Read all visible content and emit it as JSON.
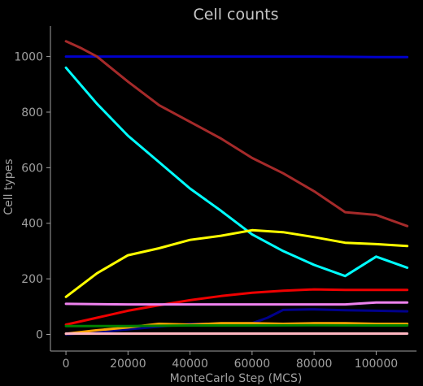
{
  "chart_data": {
    "type": "line",
    "title": "Cell counts",
    "xlabel": "MonteCarlo Step (MCS)",
    "ylabel": "Cell types",
    "xlim": [
      -5000,
      113000
    ],
    "ylim": [
      -60,
      1110
    ],
    "xticks": [
      0,
      20000,
      40000,
      60000,
      80000,
      100000
    ],
    "yticks": [
      0,
      200,
      400,
      600,
      800,
      1000
    ],
    "grid": false,
    "background": "#000000",
    "series": [
      {
        "color": "#0000cc",
        "x": [
          0,
          20000,
          40000,
          60000,
          80000,
          90000,
          100000,
          110000
        ],
        "y": [
          1000,
          1000,
          1000,
          1000,
          1000,
          999,
          998,
          998
        ]
      },
      {
        "color": "#a52a2a",
        "x": [
          0,
          5000,
          10000,
          20000,
          30000,
          40000,
          50000,
          60000,
          70000,
          80000,
          90000,
          100000,
          110000
        ],
        "y": [
          1055,
          1030,
          1000,
          910,
          825,
          765,
          705,
          635,
          580,
          515,
          440,
          430,
          390
        ]
      },
      {
        "color": "#00ffff",
        "x": [
          0,
          10000,
          20000,
          30000,
          40000,
          50000,
          60000,
          70000,
          80000,
          90000,
          100000,
          110000
        ],
        "y": [
          960,
          830,
          715,
          620,
          525,
          445,
          360,
          300,
          250,
          210,
          280,
          240
        ]
      },
      {
        "color": "#ffff00",
        "x": [
          0,
          10000,
          20000,
          30000,
          40000,
          50000,
          60000,
          70000,
          80000,
          90000,
          100000,
          110000
        ],
        "y": [
          135,
          220,
          285,
          310,
          340,
          355,
          375,
          368,
          350,
          330,
          325,
          318
        ]
      },
      {
        "color": "#ee0000",
        "x": [
          0,
          10000,
          20000,
          30000,
          40000,
          50000,
          60000,
          70000,
          80000,
          90000,
          100000,
          110000
        ],
        "y": [
          35,
          60,
          85,
          105,
          123,
          138,
          150,
          157,
          162,
          160,
          160,
          160
        ]
      },
      {
        "color": "#ee82ee",
        "x": [
          0,
          20000,
          40000,
          60000,
          80000,
          90000,
          100000,
          110000
        ],
        "y": [
          110,
          108,
          108,
          108,
          108,
          108,
          115,
          115
        ]
      },
      {
        "color": "#00008b",
        "x": [
          0,
          10000,
          20000,
          30000,
          40000,
          50000,
          60000,
          65000,
          70000,
          80000,
          90000,
          100000,
          110000
        ],
        "y": [
          0,
          8,
          18,
          28,
          38,
          38,
          40,
          60,
          88,
          90,
          87,
          85,
          83
        ]
      },
      {
        "color": "#ffa500",
        "x": [
          0,
          10000,
          20000,
          30000,
          40000,
          50000,
          60000,
          70000,
          80000,
          90000,
          100000,
          110000
        ],
        "y": [
          2,
          15,
          25,
          38,
          35,
          40,
          40,
          38,
          40,
          40,
          38,
          38
        ]
      },
      {
        "color": "#008000",
        "x": [
          0,
          20000,
          40000,
          60000,
          80000,
          100000,
          110000
        ],
        "y": [
          30,
          30,
          32,
          32,
          33,
          32,
          32
        ]
      },
      {
        "color": "#ffb6c1",
        "x": [
          0,
          20000,
          40000,
          60000,
          80000,
          100000,
          110000
        ],
        "y": [
          3,
          3,
          3,
          3,
          3,
          3,
          3
        ]
      }
    ]
  }
}
